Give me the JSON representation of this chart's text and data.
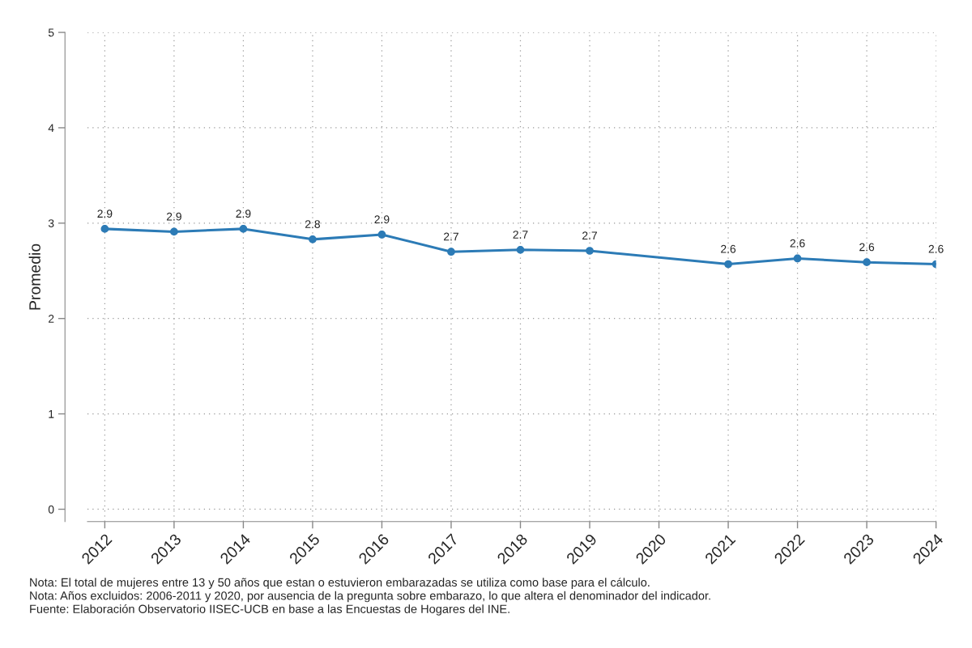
{
  "chart_data": {
    "type": "line",
    "x": [
      2012,
      2013,
      2014,
      2015,
      2016,
      2017,
      2018,
      2019,
      2021,
      2022,
      2023,
      2024
    ],
    "series": [
      {
        "color": "#2c7bb6",
        "values": [
          2.94,
          2.91,
          2.94,
          2.83,
          2.88,
          2.7,
          2.72,
          2.71,
          2.57,
          2.63,
          2.59,
          2.57
        ],
        "value_labels": [
          "2.9",
          "2.9",
          "2.9",
          "2.8",
          "2.9",
          "2.7",
          "2.7",
          "2.7",
          "2.6",
          "2.6",
          "2.6",
          "2.6"
        ]
      }
    ],
    "ylabel": "Promedio",
    "xlim": [
      2011.75,
      2024
    ],
    "xticks": [
      2012,
      2013,
      2014,
      2015,
      2016,
      2017,
      2018,
      2019,
      2020,
      2021,
      2022,
      2023,
      2024
    ],
    "ylim": [
      -0.13,
      5
    ],
    "yticks": [
      0,
      1,
      2,
      3,
      4,
      5
    ],
    "grid": true,
    "marker": "circle",
    "line_style": "solid",
    "annotations": [
      "Nota: El total de mujeres entre 13 y 50 años que estan o estuvieron embarazadas se utiliza como base para el cálculo.",
      "Nota: Años excluidos: 2006-2011 y 2020, por ausencia de la pregunta sobre embarazo, lo que altera el denominador del indicador.",
      "Fuente: Elaboración Observatorio IISEC-UCB en base a las Encuestas de Hogares del INE."
    ]
  }
}
